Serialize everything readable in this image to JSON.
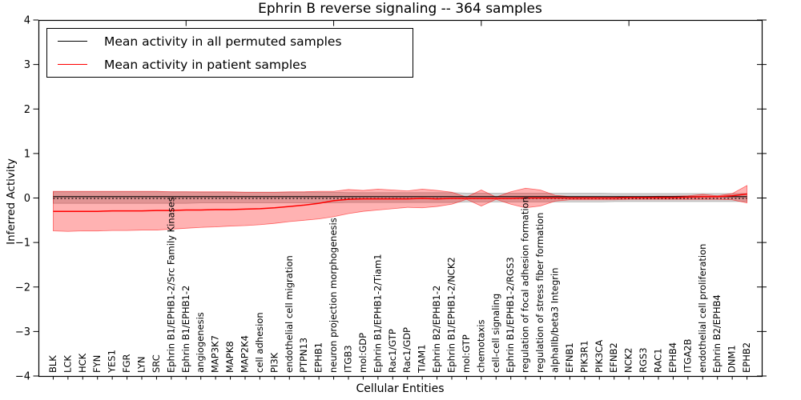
{
  "chart_data": {
    "type": "line",
    "title": "Ephrin B reverse signaling -- 364 samples",
    "xlabel": "Cellular Entities",
    "ylabel": "Inferred Activity",
    "ylim": [
      -4,
      4
    ],
    "yticks": [
      4,
      3,
      2,
      1,
      0,
      -1,
      -2,
      -3,
      -4
    ],
    "grid": false,
    "legend_position": "upper left",
    "top_ticks": [
      10,
      20,
      30,
      40
    ],
    "categories": [
      "BLK",
      "LCK",
      "HCK",
      "FYN",
      "YES1",
      "FGR",
      "LYN",
      "SRC",
      "Ephrin B1/EPHB1-2/Src Family Kinases",
      "Ephrin B1/EPHB1-2",
      "angiogenesis",
      "MAP3K7",
      "MAPK8",
      "MAP2K4",
      "cell adhesion",
      "PI3K",
      "endothelial cell migration",
      "PTPN13",
      "EPHB1",
      "neuron projection morphogenesis",
      "ITGB3",
      "mol:GDP",
      "Ephrin B1/EPHB1-2/Tiam1",
      "Rac1/GTP",
      "Rac1/GDP",
      "TIAM1",
      "Ephrin B2/EPHB1-2",
      "Ephrin B1/EPHB1-2/NCK2",
      "mol:GTP",
      "chemotaxis",
      "cell-cell signaling",
      "Ephrin B1/EPHB1-2/RGS3",
      "regulation of focal adhesion formation",
      "regulation of stress fiber formation",
      "alphaIIb/beta3 Integrin",
      "EFNB1",
      "PIK3R1",
      "PIK3CA",
      "EFNB2",
      "NCK2",
      "RGS3",
      "RAC1",
      "EPHB4",
      "ITGA2B",
      "endothelial cell proliferation",
      "Ephrin B2/EPHB4",
      "DNM1",
      "EPHB2"
    ],
    "series": [
      {
        "name": "Permuted samples confidence band",
        "type": "band",
        "color": "#999999",
        "opacity": 0.42,
        "upper": [
          0.14,
          0.14,
          0.14,
          0.14,
          0.14,
          0.14,
          0.14,
          0.14,
          0.14,
          0.14,
          0.13,
          0.13,
          0.13,
          0.13,
          0.13,
          0.13,
          0.13,
          0.13,
          0.13,
          0.13,
          0.12,
          0.12,
          0.12,
          0.12,
          0.12,
          0.12,
          0.12,
          0.12,
          0.11,
          0.11,
          0.11,
          0.11,
          0.11,
          0.11,
          0.11,
          0.11,
          0.11,
          0.11,
          0.1,
          0.1,
          0.1,
          0.1,
          0.1,
          0.1,
          0.1,
          0.1,
          0.1,
          0.1
        ],
        "lower": [
          -0.12,
          -0.12,
          -0.12,
          -0.12,
          -0.12,
          -0.12,
          -0.12,
          -0.12,
          -0.12,
          -0.12,
          -0.11,
          -0.11,
          -0.11,
          -0.11,
          -0.11,
          -0.11,
          -0.11,
          -0.11,
          -0.11,
          -0.11,
          -0.1,
          -0.1,
          -0.1,
          -0.1,
          -0.1,
          -0.1,
          -0.1,
          -0.1,
          -0.09,
          -0.09,
          -0.09,
          -0.09,
          -0.09,
          -0.09,
          -0.09,
          -0.09,
          -0.09,
          -0.09,
          -0.08,
          -0.08,
          -0.08,
          -0.08,
          -0.08,
          -0.08,
          -0.08,
          -0.08,
          -0.08,
          -0.08
        ]
      },
      {
        "name": "Patient samples confidence band",
        "type": "band",
        "color": "#ff0000",
        "opacity": 0.3,
        "upper": [
          0.15,
          0.15,
          0.15,
          0.15,
          0.15,
          0.15,
          0.15,
          0.15,
          0.14,
          0.14,
          0.14,
          0.14,
          0.14,
          0.13,
          0.13,
          0.13,
          0.14,
          0.14,
          0.15,
          0.15,
          0.19,
          0.17,
          0.2,
          0.18,
          0.16,
          0.2,
          0.17,
          0.13,
          0.02,
          0.18,
          0.02,
          0.14,
          0.22,
          0.18,
          0.06,
          0.03,
          0.03,
          0.03,
          0.03,
          0.03,
          0.03,
          0.04,
          0.04,
          0.05,
          0.08,
          0.05,
          0.1,
          0.28
        ],
        "lower": [
          -0.74,
          -0.75,
          -0.74,
          -0.74,
          -0.73,
          -0.73,
          -0.72,
          -0.72,
          -0.7,
          -0.68,
          -0.66,
          -0.65,
          -0.63,
          -0.62,
          -0.6,
          -0.57,
          -0.53,
          -0.5,
          -0.47,
          -0.42,
          -0.35,
          -0.3,
          -0.27,
          -0.24,
          -0.21,
          -0.22,
          -0.19,
          -0.14,
          -0.03,
          -0.18,
          -0.03,
          -0.14,
          -0.22,
          -0.18,
          -0.07,
          -0.04,
          -0.04,
          -0.04,
          -0.04,
          -0.03,
          -0.03,
          -0.03,
          -0.03,
          -0.03,
          -0.03,
          -0.03,
          -0.04,
          -0.11
        ]
      },
      {
        "name": "Zero reference",
        "type": "line",
        "style": "dotted",
        "color": "#000000",
        "width": 1.2,
        "constant": -0.01
      },
      {
        "name": "Mean activity in all permuted samples",
        "type": "line",
        "style": "solid",
        "color": "#000000",
        "width": 1.2,
        "constant": 0.03
      },
      {
        "name": "Mean activity in patient samples",
        "type": "line",
        "style": "solid",
        "color": "#ff0000",
        "width": 1.5,
        "values": [
          -0.3,
          -0.3,
          -0.3,
          -0.3,
          -0.29,
          -0.29,
          -0.29,
          -0.28,
          -0.28,
          -0.27,
          -0.27,
          -0.26,
          -0.26,
          -0.25,
          -0.24,
          -0.22,
          -0.19,
          -0.16,
          -0.12,
          -0.06,
          -0.03,
          -0.02,
          -0.02,
          -0.02,
          -0.02,
          -0.01,
          -0.02,
          -0.01,
          -0.01,
          -0.01,
          -0.01,
          -0.01,
          0.0,
          0.0,
          0.0,
          0.0,
          0.0,
          0.0,
          0.0,
          0.01,
          0.01,
          0.01,
          0.01,
          0.02,
          0.03,
          0.03,
          0.05,
          0.09
        ]
      }
    ]
  },
  "legend": {
    "items": [
      {
        "label": "Mean activity in all permuted samples",
        "color": "#000000"
      },
      {
        "label": "Mean activity in patient samples",
        "color": "#ff0000"
      }
    ]
  }
}
